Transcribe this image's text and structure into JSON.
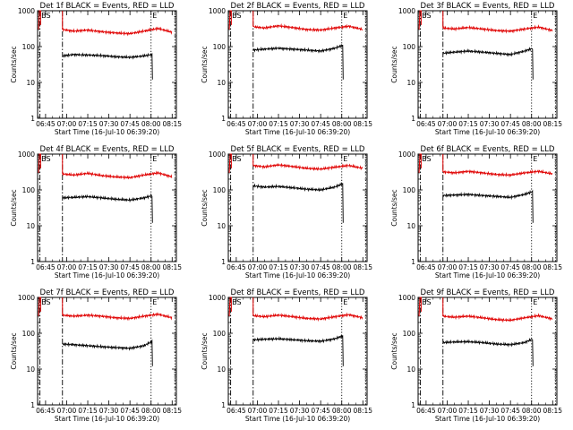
{
  "figure": {
    "background": "#ffffff",
    "colors": {
      "events": "#000000",
      "lld": "#e00000",
      "axes": "#000000"
    }
  },
  "chart_data": [
    {
      "type": "line",
      "title": "Det 1f BLACK = Events, RED = LLD",
      "xlabel": "Start Time (16-Jul-10 06:39:20)",
      "ylabel": "Counts/sec",
      "yscale": "log",
      "ylim": [
        1,
        1000
      ],
      "xlim": [
        "06:39:20",
        "08:18:00"
      ],
      "x_ticks": [
        "06:45",
        "07:00",
        "07:15",
        "07:30",
        "07:45",
        "08:00",
        "08:15"
      ],
      "y_ticks": [
        "1",
        "10",
        "100",
        "1000"
      ],
      "markers": [
        {
          "label": "BS",
          "time": "06:41",
          "style": "dash-dot"
        },
        {
          "label": "",
          "time": "06:57",
          "style": "dash-dot"
        },
        {
          "label": "E",
          "time": "08:00",
          "style": "dotted"
        },
        {
          "label": "",
          "time": "08:17",
          "style": "dotted"
        }
      ],
      "series": [
        {
          "name": "Events",
          "color": "#000000",
          "time": [
            "06:57",
            "07:05",
            "07:15",
            "07:25",
            "07:35",
            "07:45",
            "07:55",
            "08:01"
          ],
          "values": [
            55,
            60,
            58,
            56,
            52,
            50,
            55,
            60
          ]
        },
        {
          "name": "LLD",
          "color": "#e00000",
          "time": [
            "06:57",
            "07:05",
            "07:15",
            "07:25",
            "07:35",
            "07:45",
            "07:55",
            "08:05",
            "08:15"
          ],
          "values": [
            300,
            270,
            290,
            260,
            240,
            230,
            270,
            320,
            250
          ]
        }
      ]
    },
    {
      "type": "line",
      "title": "Det 2f BLACK = Events, RED = LLD",
      "xlabel": "Start Time (16-Jul-10 06:39:20)",
      "ylabel": "Counts/sec",
      "yscale": "log",
      "ylim": [
        1,
        1000
      ],
      "xlim": [
        "06:39:20",
        "08:18:00"
      ],
      "x_ticks": [
        "06:45",
        "07:00",
        "07:15",
        "07:30",
        "07:45",
        "08:00",
        "08:15"
      ],
      "y_ticks": [
        "1",
        "10",
        "100",
        "1000"
      ],
      "markers": [
        {
          "label": "BS",
          "time": "06:41",
          "style": "dash-dot"
        },
        {
          "label": "",
          "time": "06:57",
          "style": "dash-dot"
        },
        {
          "label": "E",
          "time": "08:00",
          "style": "dotted"
        },
        {
          "label": "",
          "time": "08:17",
          "style": "dotted"
        }
      ],
      "series": [
        {
          "name": "Events",
          "color": "#000000",
          "time": [
            "06:57",
            "07:05",
            "07:15",
            "07:25",
            "07:35",
            "07:45",
            "07:55",
            "08:01"
          ],
          "values": [
            80,
            85,
            90,
            85,
            80,
            75,
            90,
            110
          ]
        },
        {
          "name": "LLD",
          "color": "#e00000",
          "time": [
            "06:57",
            "07:05",
            "07:15",
            "07:25",
            "07:35",
            "07:45",
            "07:55",
            "08:05",
            "08:15"
          ],
          "values": [
            360,
            330,
            380,
            340,
            300,
            290,
            330,
            370,
            300
          ]
        }
      ]
    },
    {
      "type": "line",
      "title": "Det 3f BLACK = Events, RED = LLD",
      "xlabel": "Start Time (16-Jul-10 06:39:20)",
      "ylabel": "Counts/sec",
      "yscale": "log",
      "ylim": [
        1,
        1000
      ],
      "xlim": [
        "06:39:20",
        "08:18:00"
      ],
      "x_ticks": [
        "06:45",
        "07:00",
        "07:15",
        "07:30",
        "07:45",
        "08:00",
        "08:15"
      ],
      "y_ticks": [
        "1",
        "10",
        "100",
        "1000"
      ],
      "markers": [
        {
          "label": "BS",
          "time": "06:41",
          "style": "dash-dot"
        },
        {
          "label": "",
          "time": "06:57",
          "style": "dash-dot"
        },
        {
          "label": "E",
          "time": "08:00",
          "style": "dotted"
        },
        {
          "label": "",
          "time": "08:17",
          "style": "dotted"
        }
      ],
      "series": [
        {
          "name": "Events",
          "color": "#000000",
          "time": [
            "06:57",
            "07:05",
            "07:15",
            "07:25",
            "07:35",
            "07:45",
            "07:55",
            "08:01"
          ],
          "values": [
            65,
            70,
            75,
            70,
            65,
            60,
            75,
            90
          ]
        },
        {
          "name": "LLD",
          "color": "#e00000",
          "time": [
            "06:57",
            "07:05",
            "07:15",
            "07:25",
            "07:35",
            "07:45",
            "07:55",
            "08:05",
            "08:15"
          ],
          "values": [
            330,
            310,
            340,
            310,
            280,
            270,
            310,
            350,
            280
          ]
        }
      ]
    },
    {
      "type": "line",
      "title": "Det 4f BLACK = Events, RED = LLD",
      "xlabel": "Start Time (16-Jul-10 06:39:20)",
      "ylabel": "Counts/sec",
      "yscale": "log",
      "ylim": [
        1,
        1000
      ],
      "xlim": [
        "06:39:20",
        "08:18:00"
      ],
      "x_ticks": [
        "06:45",
        "07:00",
        "07:15",
        "07:30",
        "07:45",
        "08:00",
        "08:15"
      ],
      "y_ticks": [
        "1",
        "10",
        "100",
        "1000"
      ],
      "markers": [
        {
          "label": "BS",
          "time": "06:41",
          "style": "dash-dot"
        },
        {
          "label": "",
          "time": "06:57",
          "style": "dash-dot"
        },
        {
          "label": "E",
          "time": "08:00",
          "style": "dotted"
        },
        {
          "label": "",
          "time": "08:17",
          "style": "dotted"
        }
      ],
      "series": [
        {
          "name": "Events",
          "color": "#000000",
          "time": [
            "06:57",
            "07:05",
            "07:15",
            "07:25",
            "07:35",
            "07:45",
            "07:55",
            "08:01"
          ],
          "values": [
            60,
            62,
            65,
            60,
            55,
            52,
            60,
            70
          ]
        },
        {
          "name": "LLD",
          "color": "#e00000",
          "time": [
            "06:57",
            "07:05",
            "07:15",
            "07:25",
            "07:35",
            "07:45",
            "07:55",
            "08:05",
            "08:15"
          ],
          "values": [
            280,
            260,
            290,
            250,
            230,
            220,
            260,
            300,
            230
          ]
        }
      ]
    },
    {
      "type": "line",
      "title": "Det 5f BLACK = Events, RED = LLD",
      "xlabel": "Start Time (16-Jul-10 06:39:20)",
      "ylabel": "Counts/sec",
      "yscale": "log",
      "ylim": [
        1,
        1000
      ],
      "xlim": [
        "06:39:20",
        "08:18:00"
      ],
      "x_ticks": [
        "06:45",
        "07:00",
        "07:15",
        "07:30",
        "07:45",
        "08:00",
        "08:15"
      ],
      "y_ticks": [
        "1",
        "10",
        "100",
        "1000"
      ],
      "markers": [
        {
          "label": "BS",
          "time": "06:41",
          "style": "dash-dot"
        },
        {
          "label": "",
          "time": "06:57",
          "style": "dash-dot"
        },
        {
          "label": "E",
          "time": "08:00",
          "style": "dotted"
        },
        {
          "label": "",
          "time": "08:17",
          "style": "dotted"
        }
      ],
      "series": [
        {
          "name": "Events",
          "color": "#000000",
          "time": [
            "06:57",
            "07:05",
            "07:15",
            "07:25",
            "07:35",
            "07:45",
            "07:55",
            "08:01"
          ],
          "values": [
            130,
            120,
            125,
            115,
            105,
            100,
            120,
            150
          ]
        },
        {
          "name": "LLD",
          "color": "#e00000",
          "time": [
            "06:57",
            "07:05",
            "07:15",
            "07:25",
            "07:35",
            "07:45",
            "07:55",
            "08:05",
            "08:15"
          ],
          "values": [
            480,
            440,
            500,
            450,
            400,
            380,
            430,
            480,
            400
          ]
        }
      ]
    },
    {
      "type": "line",
      "title": "Det 6f BLACK = Events, RED = LLD",
      "xlabel": "Start Time (16-Jul-10 06:39:20)",
      "ylabel": "Counts/sec",
      "yscale": "log",
      "ylim": [
        1,
        1000
      ],
      "xlim": [
        "06:39:20",
        "08:18:00"
      ],
      "x_ticks": [
        "06:45",
        "07:00",
        "07:15",
        "07:30",
        "07:45",
        "08:00",
        "08:15"
      ],
      "y_ticks": [
        "1",
        "10",
        "100",
        "1000"
      ],
      "markers": [
        {
          "label": "BS",
          "time": "06:41",
          "style": "dash-dot"
        },
        {
          "label": "",
          "time": "06:57",
          "style": "dash-dot"
        },
        {
          "label": "E",
          "time": "08:00",
          "style": "dotted"
        },
        {
          "label": "",
          "time": "08:17",
          "style": "dotted"
        }
      ],
      "series": [
        {
          "name": "Events",
          "color": "#000000",
          "time": [
            "06:57",
            "07:05",
            "07:15",
            "07:25",
            "07:35",
            "07:45",
            "07:55",
            "08:01"
          ],
          "values": [
            70,
            72,
            75,
            70,
            66,
            62,
            75,
            90
          ]
        },
        {
          "name": "LLD",
          "color": "#e00000",
          "time": [
            "06:57",
            "07:05",
            "07:15",
            "07:25",
            "07:35",
            "07:45",
            "07:55",
            "08:05",
            "08:15"
          ],
          "values": [
            320,
            300,
            330,
            300,
            270,
            260,
            300,
            330,
            280
          ]
        }
      ]
    },
    {
      "type": "line",
      "title": "Det 7f BLACK = Events, RED = LLD",
      "xlabel": "Start Time (16-Jul-10 06:39:20)",
      "ylabel": "Counts/sec",
      "yscale": "log",
      "ylim": [
        1,
        1000
      ],
      "xlim": [
        "06:39:20",
        "08:18:00"
      ],
      "x_ticks": [
        "06:45",
        "07:00",
        "07:15",
        "07:30",
        "07:45",
        "08:00",
        "08:15"
      ],
      "y_ticks": [
        "1",
        "10",
        "100",
        "1000"
      ],
      "markers": [
        {
          "label": "BS",
          "time": "06:41",
          "style": "dash-dot"
        },
        {
          "label": "",
          "time": "06:57",
          "style": "dash-dot"
        },
        {
          "label": "E",
          "time": "08:00",
          "style": "dotted"
        },
        {
          "label": "",
          "time": "08:17",
          "style": "dotted"
        }
      ],
      "series": [
        {
          "name": "Events",
          "color": "#000000",
          "time": [
            "06:57",
            "07:05",
            "07:15",
            "07:25",
            "07:35",
            "07:45",
            "07:55",
            "08:01"
          ],
          "values": [
            50,
            48,
            45,
            42,
            40,
            38,
            45,
            60
          ]
        },
        {
          "name": "LLD",
          "color": "#e00000",
          "time": [
            "06:57",
            "07:05",
            "07:15",
            "07:25",
            "07:35",
            "07:45",
            "07:55",
            "08:05",
            "08:15"
          ],
          "values": [
            320,
            300,
            320,
            300,
            270,
            260,
            300,
            340,
            270
          ]
        }
      ]
    },
    {
      "type": "line",
      "title": "Det 8f BLACK = Events, RED = LLD",
      "xlabel": "Start Time (16-Jul-10 06:39:20)",
      "ylabel": "Counts/sec",
      "yscale": "log",
      "ylim": [
        1,
        1000
      ],
      "xlim": [
        "06:39:20",
        "08:18:00"
      ],
      "x_ticks": [
        "06:45",
        "07:00",
        "07:15",
        "07:30",
        "07:45",
        "08:00",
        "08:15"
      ],
      "y_ticks": [
        "1",
        "10",
        "100",
        "1000"
      ],
      "markers": [
        {
          "label": "BS",
          "time": "06:41",
          "style": "dash-dot"
        },
        {
          "label": "",
          "time": "06:57",
          "style": "dash-dot"
        },
        {
          "label": "E",
          "time": "08:00",
          "style": "dotted"
        },
        {
          "label": "",
          "time": "08:17",
          "style": "dotted"
        }
      ],
      "series": [
        {
          "name": "Events",
          "color": "#000000",
          "time": [
            "06:57",
            "07:05",
            "07:15",
            "07:25",
            "07:35",
            "07:45",
            "07:55",
            "08:01"
          ],
          "values": [
            65,
            68,
            70,
            66,
            62,
            60,
            70,
            85
          ]
        },
        {
          "name": "LLD",
          "color": "#e00000",
          "time": [
            "06:57",
            "07:05",
            "07:15",
            "07:25",
            "07:35",
            "07:45",
            "07:55",
            "08:05",
            "08:15"
          ],
          "values": [
            310,
            290,
            320,
            290,
            260,
            250,
            290,
            330,
            270
          ]
        }
      ]
    },
    {
      "type": "line",
      "title": "Det 9f BLACK = Events, RED = LLD",
      "xlabel": "Start Time (16-Jul-10 06:39:20)",
      "ylabel": "Counts/sec",
      "yscale": "log",
      "ylim": [
        1,
        1000
      ],
      "xlim": [
        "06:39:20",
        "08:18:00"
      ],
      "x_ticks": [
        "06:45",
        "07:00",
        "07:15",
        "07:30",
        "07:45",
        "08:00",
        "08:15"
      ],
      "y_ticks": [
        "1",
        "10",
        "100",
        "1000"
      ],
      "markers": [
        {
          "label": "BS",
          "time": "06:41",
          "style": "dash-dot"
        },
        {
          "label": "",
          "time": "06:57",
          "style": "dash-dot"
        },
        {
          "label": "E",
          "time": "08:00",
          "style": "dotted"
        },
        {
          "label": "",
          "time": "08:17",
          "style": "dotted"
        }
      ],
      "series": [
        {
          "name": "Events",
          "color": "#000000",
          "time": [
            "06:57",
            "07:05",
            "07:15",
            "07:25",
            "07:35",
            "07:45",
            "07:55",
            "08:01"
          ],
          "values": [
            55,
            57,
            58,
            55,
            50,
            48,
            55,
            70
          ]
        },
        {
          "name": "LLD",
          "color": "#e00000",
          "time": [
            "06:57",
            "07:05",
            "07:15",
            "07:25",
            "07:35",
            "07:45",
            "07:55",
            "08:05",
            "08:15"
          ],
          "values": [
            300,
            280,
            300,
            270,
            240,
            230,
            270,
            310,
            250
          ]
        }
      ]
    }
  ]
}
